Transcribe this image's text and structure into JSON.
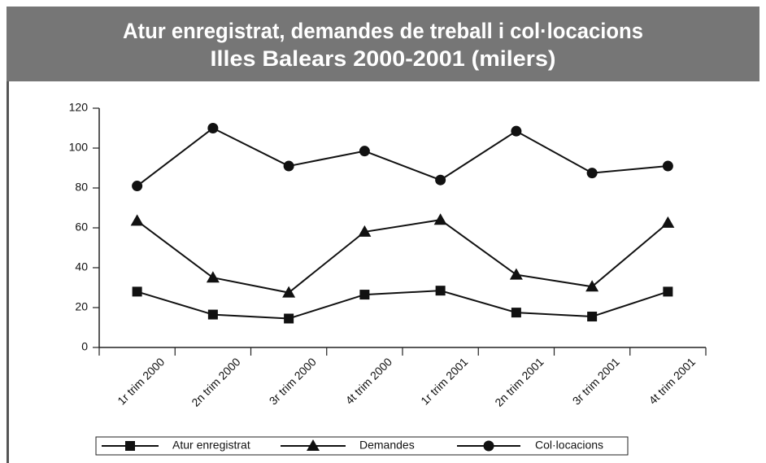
{
  "chart_data": {
    "type": "line",
    "title": [
      "Atur enregistrat, demandes de treball i col·locacions",
      "Illes Balears 2000-2001 (milers)"
    ],
    "categories": [
      "1r trim 2000",
      "2n trim 2000",
      "3r trim 2000",
      "4t trim 2000",
      "1r trim 2001",
      "2n trim 2001",
      "3r trim 2001",
      "4t trim 2001"
    ],
    "series": [
      {
        "name": "Atur enregistrat",
        "color": "#111111",
        "marker": "square",
        "values": [
          28,
          16.5,
          14.5,
          26.5,
          28.5,
          17.5,
          15.5,
          28
        ]
      },
      {
        "name": "Demandes",
        "color": "#111111",
        "marker": "triangle",
        "values": [
          63.5,
          35,
          27.5,
          58,
          64,
          36.5,
          30.5,
          62.5
        ]
      },
      {
        "name": "Col·locacions",
        "color": "#111111",
        "marker": "circle",
        "values": [
          81,
          110,
          91,
          98.5,
          84,
          108.5,
          87.5,
          91
        ]
      }
    ],
    "ylim": [
      0,
      120
    ],
    "yticks": [
      0,
      20,
      40,
      60,
      80,
      100,
      120
    ],
    "grid": false,
    "legend": "bottom"
  }
}
